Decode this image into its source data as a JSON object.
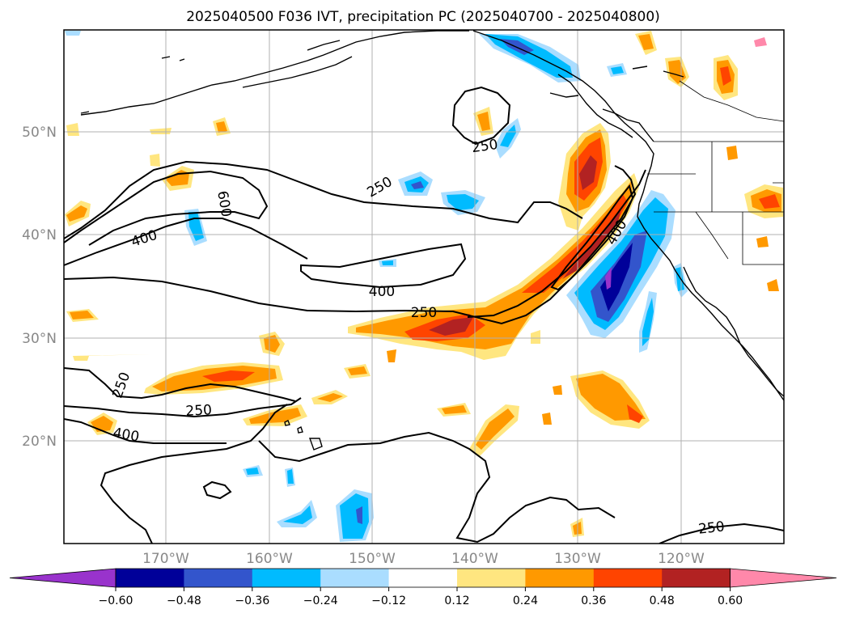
{
  "title": "2025040500 F036 IVT, precipitation PC (2025040700 - 2025040800)",
  "map": {
    "lon_range": [
      -180,
      -110
    ],
    "lat_range": [
      10,
      60
    ],
    "lon_labels": [
      "170°W",
      "160°W",
      "150°W",
      "140°W",
      "130°W",
      "120°W"
    ],
    "lat_labels": [
      "50°N",
      "40°N",
      "30°N",
      "20°N"
    ],
    "gridlines": true
  },
  "ivt_contour_labels": [
    "250",
    "250",
    "600",
    "400",
    "400",
    "400",
    "250",
    "250",
    "250",
    "400",
    "250"
  ],
  "colorbar": {
    "ticks": [
      "−0.60",
      "−0.48",
      "−0.36",
      "−0.24",
      "−0.12",
      "0.12",
      "0.24",
      "0.36",
      "0.48",
      "0.60"
    ],
    "colors": [
      "#9933cc",
      "#000099",
      "#3355cc",
      "#00bbff",
      "#aaddff",
      "#ffffff",
      "#ffe680",
      "#ff9900",
      "#ff4400",
      "#b22222",
      "#ff88aa"
    ]
  }
}
